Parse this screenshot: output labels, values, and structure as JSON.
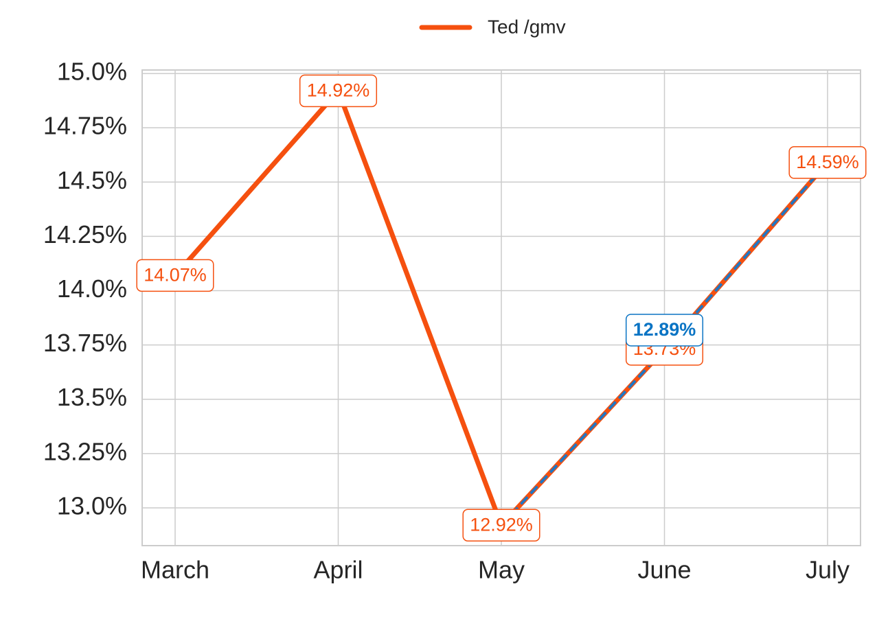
{
  "chart_data": {
    "type": "line",
    "categories": [
      "March",
      "April",
      "May",
      "June",
      "July"
    ],
    "series": [
      {
        "name": "Ted /gmv",
        "color": "#f5500f",
        "values": [
          14.07,
          14.92,
          12.92,
          13.73,
          14.59
        ],
        "value_labels": [
          "14.07%",
          "14.92%",
          "12.92%",
          "13.73%",
          "14.59%"
        ]
      },
      {
        "color": "#1f77c4",
        "dashed": true,
        "values": [
          null,
          null,
          12.92,
          13.73,
          14.59
        ]
      }
    ],
    "annotations": [
      {
        "text": "12.89%",
        "category": "June",
        "color": "#0a74c4"
      }
    ],
    "ylim": [
      12.826,
      15.016
    ],
    "yticks": [
      {
        "value": 13.0,
        "label": "13.0%"
      },
      {
        "value": 13.25,
        "label": "13.25%"
      },
      {
        "value": 13.5,
        "label": "13.5%"
      },
      {
        "value": 13.75,
        "label": "13.75%"
      },
      {
        "value": 14.0,
        "label": "14.0%"
      },
      {
        "value": 14.25,
        "label": "14.25%"
      },
      {
        "value": 14.5,
        "label": "14.5%"
      },
      {
        "value": 14.75,
        "label": "14.75%"
      },
      {
        "value": 15.0,
        "label": "15.0%"
      }
    ],
    "grid": true,
    "legend": "top"
  }
}
